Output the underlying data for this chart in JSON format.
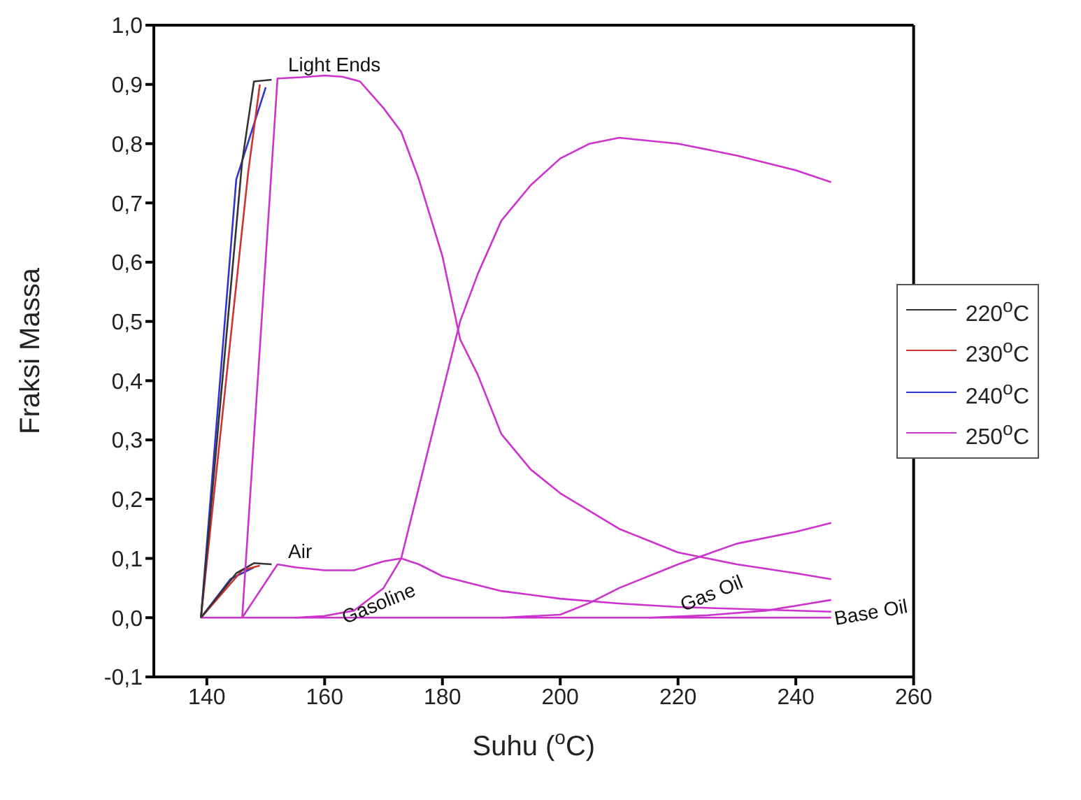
{
  "chart_data": {
    "type": "line",
    "xlabel": "Suhu ($^{o}$C)",
    "ylabel": "Fraksi Massa",
    "xlim": [
      131,
      260
    ],
    "xticks": [
      140,
      160,
      180,
      200,
      220,
      240,
      260
    ],
    "ylim": [
      -0.1,
      1.0
    ],
    "yticks": [
      {
        "value": -0.1,
        "label": "-0,1"
      },
      {
        "value": 0,
        "label": "0,0"
      },
      {
        "value": 0.1,
        "label": "0,1"
      },
      {
        "value": 0.2,
        "label": "0,2"
      },
      {
        "value": 0.3,
        "label": "0,3"
      },
      {
        "value": 0.4,
        "label": "0,4"
      },
      {
        "value": 0.5,
        "label": "0,5"
      },
      {
        "value": 0.6,
        "label": "0,6"
      },
      {
        "value": 0.7,
        "label": "0,7"
      },
      {
        "value": 0.8,
        "label": "0,8"
      },
      {
        "value": 0.9,
        "label": "0,9"
      },
      {
        "value": 1.0,
        "label": "1,0"
      }
    ],
    "legend": "right",
    "marker": "none",
    "line_style": "solid",
    "series": [
      {
        "name": "220$^{o}$C",
        "color": "#333333",
        "x": [
          139,
          146,
          148,
          151
        ],
        "values": [
          0,
          0.77,
          0.905,
          0.908
        ]
      },
      {
        "name": "230$^{o}$C",
        "color": "#cc3333",
        "x": [
          139,
          147,
          149
        ],
        "values": [
          0,
          0.75,
          0.9
        ]
      },
      {
        "name": "240$^{o}$C",
        "color": "#3333cc",
        "x": [
          139,
          145,
          150
        ],
        "values": [
          0,
          0.74,
          0.895
        ]
      },
      {
        "name": "250$^{o}$C",
        "color": "#cc33cc",
        "x": [
          146,
          152,
          156,
          160,
          163,
          166,
          170,
          173,
          176,
          180,
          183,
          186,
          190,
          195,
          200,
          210,
          220,
          230,
          240,
          246
        ],
        "values": [
          0,
          0.91,
          0.912,
          0.915,
          0.913,
          0.905,
          0.86,
          0.82,
          0.74,
          0.61,
          0.47,
          0.41,
          0.31,
          0.25,
          0.21,
          0.15,
          0.11,
          0.09,
          0.075,
          0.065
        ]
      },
      {
        "color": "#333333",
        "x": [
          139,
          145,
          148,
          151
        ],
        "values": [
          0,
          0.075,
          0.092,
          0.09
        ]
      },
      {
        "color": "#cc3333",
        "x": [
          139,
          146,
          149
        ],
        "values": [
          0,
          0.08,
          0.088
        ]
      },
      {
        "color": "#3333cc",
        "x": [
          139,
          144,
          148
        ],
        "values": [
          0,
          0.065,
          0.085
        ]
      },
      {
        "color": "#cc33cc",
        "x": [
          146,
          152,
          155,
          160,
          165,
          170,
          173,
          176,
          180,
          190,
          200,
          210,
          220,
          246
        ],
        "values": [
          0,
          0.09,
          0.085,
          0.08,
          0.08,
          0.095,
          0.1,
          0.09,
          0.07,
          0.045,
          0.032,
          0.024,
          0.018,
          0.01
        ]
      },
      {
        "color": "#cc33cc",
        "x": [
          155,
          160,
          165,
          170,
          173,
          176,
          180,
          183,
          186,
          190,
          195,
          200,
          205,
          210,
          220,
          230,
          240,
          246
        ],
        "values": [
          0,
          0.003,
          0.012,
          0.05,
          0.1,
          0.22,
          0.38,
          0.5,
          0.58,
          0.67,
          0.73,
          0.775,
          0.8,
          0.81,
          0.8,
          0.78,
          0.755,
          0.735
        ]
      },
      {
        "color": "#cc33cc",
        "x": [
          190,
          200,
          205,
          210,
          220,
          230,
          240,
          246
        ],
        "values": [
          0,
          0.005,
          0.025,
          0.05,
          0.09,
          0.125,
          0.145,
          0.16
        ]
      },
      {
        "color": "#cc33cc",
        "x": [
          215,
          225,
          235,
          240,
          246
        ],
        "values": [
          0,
          0.004,
          0.012,
          0.02,
          0.03
        ]
      },
      {
        "color": "#cc33cc",
        "x": [
          139,
          246
        ],
        "values": [
          0,
          0
        ]
      }
    ],
    "annotations": [
      "Light Ends",
      "Air",
      "Gasoline",
      "Gas Oil",
      "Base Oil"
    ]
  }
}
